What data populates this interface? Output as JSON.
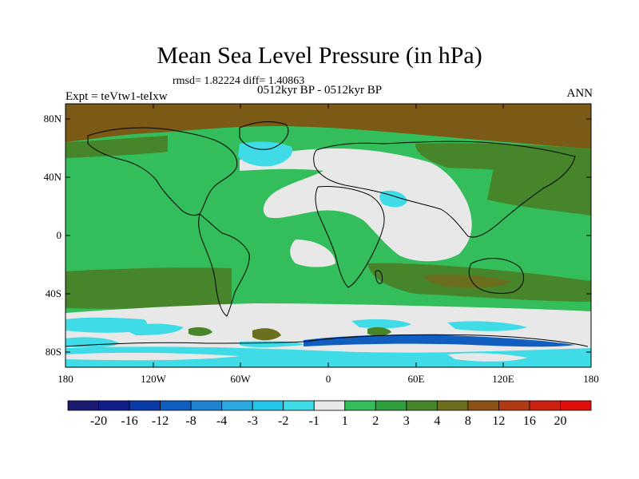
{
  "title": "Mean Sea Level Pressure (in hPa)",
  "stats": "rmsd= 1.82224 diff= 1.40863",
  "subtitle": "0512kyr BP - 0512kyr BP",
  "left_string": "Expt = teVtw1-teIxw",
  "right_string": "ANN",
  "lat_ticks": [
    "80N",
    "40N",
    "0",
    "40S",
    "80S"
  ],
  "lon_ticks": [
    "180",
    "120W",
    "60W",
    "0",
    "60E",
    "120E",
    "180"
  ],
  "colorbar": {
    "labels": [
      "-20",
      "-16",
      "-12",
      "-8",
      "-4",
      "-3",
      "-2",
      "-1",
      "1",
      "2",
      "3",
      "4",
      "8",
      "12",
      "16",
      "20"
    ],
    "colors": [
      "#1a1a70",
      "#101f8c",
      "#0a3aa8",
      "#0f5ec0",
      "#1f85d2",
      "#2aa9e0",
      "#24c5ea",
      "#3fdbe6",
      "#e8e8e8",
      "#33bd5b",
      "#2f9e3f",
      "#47852a",
      "#6b6e1d",
      "#8c5216",
      "#b03a14",
      "#cc2010",
      "#e00d0d"
    ]
  },
  "palette": {
    "land_bg": "#33bd5b",
    "high_lat": "#7a5a14",
    "mid_green": "#47852a",
    "neutral": "#e8e8e8",
    "cyan": "#3fdbe6",
    "deep": "#0f5ec0"
  }
}
